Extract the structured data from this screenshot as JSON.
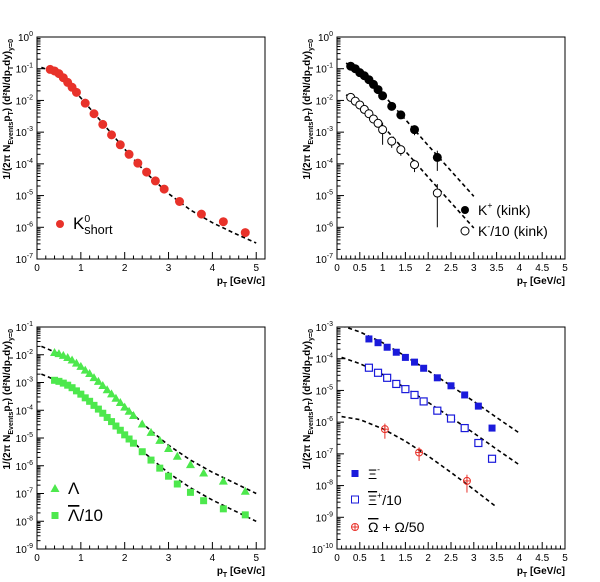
{
  "chart_data": [
    {
      "type": "scatter",
      "panel": "top-left",
      "xlabel_main": "p",
      "xlabel_sub": "T",
      "xlabel_unit": " [GeV/c]",
      "ylabel_main": "1/(2π N",
      "ylabel_sub1": "Events",
      "ylabel_mid": "p",
      "ylabel_sub2": "T",
      "ylabel_tail": ") (d²N/dp",
      "ylabel_sub3": "T",
      "ylabel_end": "dy)",
      "ylabel_sub4": "y=0",
      "xlim": [
        0,
        5.2
      ],
      "ylim_exp": [
        -7,
        0
      ],
      "xticks": [
        "0",
        "1",
        "2",
        "3",
        "4",
        "5"
      ],
      "yticks": [
        -7,
        -6,
        -5,
        -4,
        -3,
        -2,
        -1
      ],
      "log_y": true,
      "series": [
        {
          "name": "K",
          "name_sup": "0",
          "name_sub": "short",
          "marker": "circle-filled",
          "color": "#e8322a",
          "x": [
            0.3,
            0.4,
            0.5,
            0.6,
            0.7,
            0.8,
            0.9,
            1.1,
            1.3,
            1.5,
            1.7,
            1.9,
            2.1,
            2.3,
            2.5,
            2.7,
            2.9,
            3.25,
            3.75,
            4.25,
            4.75
          ],
          "y": [
            0.095,
            0.085,
            0.07,
            0.052,
            0.037,
            0.026,
            0.018,
            0.0082,
            0.0038,
            0.00175,
            0.00082,
            0.0004,
            0.0002,
            0.000105,
            5.5e-05,
            2.9e-05,
            1.6e-05,
            6.5e-06,
            2.6e-06,
            1.5e-06,
            6.8e-07
          ],
          "fit": [
            [
              0.1,
              0.11
            ],
            [
              0.5,
              0.07
            ],
            [
              1,
              0.012
            ],
            [
              1.5,
              0.0019
            ],
            [
              2,
              0.00029
            ],
            [
              2.5,
              5e-05
            ],
            [
              3,
              1.15e-05
            ],
            [
              3.5,
              3.5e-06
            ],
            [
              4,
              1.4e-06
            ],
            [
              4.5,
              6.5e-07
            ],
            [
              5,
              3.2e-07
            ]
          ]
        }
      ],
      "legend": "bottom-left"
    },
    {
      "type": "scatter",
      "panel": "top-right",
      "xlabel_main": "p",
      "xlabel_sub": "T",
      "xlabel_unit": " [GeV/c]",
      "ylabel_main": "1/(2π N",
      "ylabel_sub1": "Events",
      "ylabel_mid": "p",
      "ylabel_sub2": "T",
      "ylabel_tail": ") (d²N/dp",
      "ylabel_sub3": "T",
      "ylabel_end": "dy)",
      "ylabel_sub4": "y=0",
      "xlim": [
        0,
        5
      ],
      "ylim_exp": [
        -7,
        0
      ],
      "xticks": [
        "0",
        "0.5",
        "1",
        "1.5",
        "2",
        "2.5",
        "3",
        "3.5",
        "4",
        "4.5",
        "5"
      ],
      "yticks": [
        -7,
        -6,
        -5,
        -4,
        -3,
        -2,
        -1
      ],
      "log_y": true,
      "series": [
        {
          "name": "K",
          "name_sup": "+",
          "name_tail": " (kink)",
          "marker": "circle-filled",
          "color": "#000000",
          "x": [
            0.3,
            0.4,
            0.5,
            0.6,
            0.7,
            0.8,
            0.9,
            1.0,
            1.2,
            1.4,
            1.7,
            2.2
          ],
          "y": [
            0.12,
            0.1,
            0.075,
            0.06,
            0.045,
            0.032,
            0.022,
            0.014,
            0.0065,
            0.0035,
            0.0012,
            0.00016
          ],
          "err": [
            0.01,
            0.01,
            0.008,
            0.006,
            0.005,
            0.004,
            0.003,
            0.002,
            0.001,
            0.0007,
            0.0004,
            0.0001
          ],
          "fit": [
            [
              0.2,
              0.15
            ],
            [
              0.5,
              0.08
            ],
            [
              1,
              0.016
            ],
            [
              1.5,
              0.0025
            ],
            [
              2,
              0.00038
            ],
            [
              2.5,
              6e-05
            ],
            [
              3,
              9.5e-06
            ]
          ]
        },
        {
          "name": "K",
          "name_sup": "-",
          "name_tail": "/10 (kink)",
          "marker": "circle-open",
          "color": "#000000",
          "x": [
            0.3,
            0.4,
            0.5,
            0.6,
            0.7,
            0.8,
            0.9,
            1.0,
            1.2,
            1.4,
            1.7,
            2.2
          ],
          "y": [
            0.0125,
            0.0095,
            0.0072,
            0.0052,
            0.0038,
            0.0026,
            0.0019,
            0.0012,
            0.00052,
            0.00028,
            9.5e-05,
            1.2e-05
          ],
          "err": [
            0.001,
            0.001,
            0.0008,
            0.0006,
            0.0005,
            0.0004,
            0.0004,
            0.0008,
            0.0002,
            0.0001,
            4e-05,
            1.1e-05
          ],
          "fit": [
            [
              0.2,
              0.015
            ],
            [
              0.5,
              0.008
            ],
            [
              1,
              0.0016
            ],
            [
              1.5,
              0.00025
            ],
            [
              2,
              3.8e-05
            ],
            [
              2.5,
              6e-06
            ],
            [
              3,
              9.5e-07
            ]
          ]
        }
      ],
      "legend": "bottom-right"
    },
    {
      "type": "scatter",
      "panel": "bottom-left",
      "xlabel_main": "p",
      "xlabel_sub": "T",
      "xlabel_unit": " [GeV/c]",
      "ylabel_main": "1/(2π N",
      "ylabel_sub1": "Events",
      "ylabel_mid": "p",
      "ylabel_sub2": "T",
      "ylabel_tail": ") (d²N/dp",
      "ylabel_sub3": "T",
      "ylabel_end": "dy)",
      "ylabel_sub4": "y=0",
      "xlim": [
        0,
        5.2
      ],
      "ylim_exp": [
        -9,
        -1
      ],
      "xticks": [
        "0",
        "1",
        "2",
        "3",
        "4",
        "5"
      ],
      "yticks": [
        -9,
        -8,
        -7,
        -6,
        -5,
        -4,
        -3,
        -2,
        -1
      ],
      "log_y": true,
      "series": [
        {
          "name": "Λ",
          "marker": "triangle-filled",
          "color": "#4de84d",
          "x": [
            0.4,
            0.5,
            0.6,
            0.7,
            0.8,
            0.9,
            1.0,
            1.1,
            1.2,
            1.3,
            1.4,
            1.5,
            1.6,
            1.7,
            1.8,
            1.9,
            2.0,
            2.1,
            2.2,
            2.4,
            2.6,
            2.8,
            3.0,
            3.2,
            3.5,
            3.8,
            4.25,
            4.75
          ],
          "y": [
            0.012,
            0.011,
            0.0095,
            0.008,
            0.0065,
            0.005,
            0.0038,
            0.0028,
            0.0021,
            0.0015,
            0.0011,
            0.00078,
            0.00055,
            0.00039,
            0.00027,
            0.00019,
            0.00013,
            9.2e-05,
            6.5e-05,
            3.2e-05,
            1.6e-05,
            8.2e-06,
            4.2e-06,
            2.2e-06,
            1.1e-06,
            5.5e-07,
            2.8e-07,
            1.2e-07
          ],
          "fit": [
            [
              0.1,
              0.02
            ],
            [
              0.5,
              0.011
            ],
            [
              1,
              0.0038
            ],
            [
              1.5,
              0.0008
            ],
            [
              2,
              0.00014
            ],
            [
              2.5,
              2.5e-05
            ],
            [
              3,
              5.5e-06
            ],
            [
              3.5,
              1.6e-06
            ],
            [
              4,
              5.8e-07
            ],
            [
              4.5,
              2.4e-07
            ],
            [
              5,
              1e-07
            ]
          ]
        },
        {
          "name": "Λ",
          "name_over": true,
          "name_tail": "/10",
          "marker": "square-filled",
          "color": "#4de84d",
          "x": [
            0.4,
            0.5,
            0.6,
            0.7,
            0.8,
            0.9,
            1.0,
            1.1,
            1.2,
            1.3,
            1.4,
            1.5,
            1.6,
            1.7,
            1.8,
            1.9,
            2.0,
            2.1,
            2.2,
            2.4,
            2.6,
            2.8,
            3.0,
            3.2,
            3.5,
            3.8,
            4.25,
            4.75
          ],
          "y": [
            0.0012,
            0.0011,
            0.00095,
            0.0008,
            0.00065,
            0.0005,
            0.00038,
            0.00028,
            0.00021,
            0.00015,
            0.00011,
            7.8e-05,
            5.5e-05,
            3.9e-05,
            2.7e-05,
            1.9e-05,
            1.3e-05,
            9.2e-06,
            6.5e-06,
            3.2e-06,
            1.6e-06,
            8.2e-07,
            4.2e-07,
            2.2e-07,
            1.1e-07,
            5.5e-08,
            2.8e-08,
            1.7e-08
          ],
          "fit": [
            [
              0.1,
              0.002
            ],
            [
              0.5,
              0.0011
            ],
            [
              1,
              0.00038
            ],
            [
              1.5,
              8e-05
            ],
            [
              2,
              1.4e-05
            ],
            [
              2.5,
              2.5e-06
            ],
            [
              3,
              5.5e-07
            ],
            [
              3.5,
              1.6e-07
            ],
            [
              4,
              5.8e-08
            ],
            [
              4.5,
              2.4e-08
            ],
            [
              5,
              1e-08
            ]
          ]
        }
      ],
      "legend": "bottom-left"
    },
    {
      "type": "scatter",
      "panel": "bottom-right",
      "xlabel_main": "p",
      "xlabel_sub": "T",
      "xlabel_unit": " [GeV/c]",
      "ylabel_main": "1/(2π N",
      "ylabel_sub1": "Events",
      "ylabel_mid": "p",
      "ylabel_sub2": "T",
      "ylabel_tail": ") (d²N/dp",
      "ylabel_sub3": "T",
      "ylabel_end": "dy)",
      "ylabel_sub4": "y=0",
      "xlim": [
        0,
        5
      ],
      "ylim_exp": [
        -10,
        -3
      ],
      "xticks": [
        "0",
        "0.5",
        "1",
        "1.5",
        "2",
        "2.5",
        "3",
        "3.5",
        "4",
        "4.5",
        "5"
      ],
      "yticks": [
        -10,
        -9,
        -8,
        -7,
        -6,
        -5,
        -4,
        -3
      ],
      "log_y": true,
      "series": [
        {
          "name": "Ξ",
          "name_sup": "-",
          "marker": "square-filled",
          "color": "#1a1adb",
          "x": [
            0.7,
            0.9,
            1.1,
            1.3,
            1.5,
            1.7,
            1.9,
            2.2,
            2.5,
            2.8,
            3.1,
            3.4
          ],
          "y": [
            0.00042,
            0.00032,
            0.00023,
            0.00016,
            0.00011,
            7.8e-05,
            5e-05,
            2.5e-05,
            1.4e-05,
            7.2e-06,
            3.2e-06,
            6.5e-07
          ],
          "fit": [
            [
              0.1,
              0.0011
            ],
            [
              0.5,
              0.0007
            ],
            [
              1,
              0.00032
            ],
            [
              1.5,
              0.00012
            ],
            [
              2,
              4.2e-05
            ],
            [
              2.5,
              1.4e-05
            ],
            [
              3,
              4.5e-06
            ],
            [
              3.5,
              1.4e-06
            ],
            [
              4,
              4.5e-07
            ]
          ]
        },
        {
          "name": "Ξ",
          "name_over": true,
          "name_sup": "+",
          "name_tail": "/10",
          "marker": "square-open",
          "color": "#1a1adb",
          "x": [
            0.7,
            0.9,
            1.1,
            1.3,
            1.5,
            1.7,
            1.9,
            2.2,
            2.5,
            2.8,
            3.1,
            3.4
          ],
          "y": [
            5.2e-05,
            3.6e-05,
            2.5e-05,
            1.6e-05,
            1.1e-05,
            7.2e-06,
            4.5e-06,
            2.3e-06,
            1.3e-06,
            6.5e-07,
            2.2e-07,
            7e-08
          ],
          "fit": [
            [
              0.1,
              0.00011
            ],
            [
              0.5,
              7e-05
            ],
            [
              1,
              3.2e-05
            ],
            [
              1.5,
              1.2e-05
            ],
            [
              2,
              4.2e-06
            ],
            [
              2.5,
              1.4e-06
            ],
            [
              3,
              4.5e-07
            ],
            [
              3.5,
              1.4e-07
            ],
            [
              4,
              4.5e-08
            ]
          ]
        },
        {
          "name": "Ω",
          "name_over": true,
          "name_tail": " + Ω/50",
          "marker": "cross-open",
          "color": "#e8322a",
          "x": [
            1.05,
            1.8,
            2.85
          ],
          "y": [
            6e-07,
            1.1e-07,
            1.4e-08
          ],
          "err": [
            3e-07,
            5e-08,
            8e-09
          ],
          "fit": [
            [
              0.1,
              1.5e-06
            ],
            [
              0.5,
              1.2e-06
            ],
            [
              1,
              6.2e-07
            ],
            [
              1.5,
              2.5e-07
            ],
            [
              2,
              8.5e-08
            ],
            [
              2.5,
              2.6e-08
            ],
            [
              3,
              7.5e-09
            ],
            [
              3.5,
              2.1e-09
            ]
          ]
        }
      ],
      "legend": "bottom-left"
    }
  ]
}
